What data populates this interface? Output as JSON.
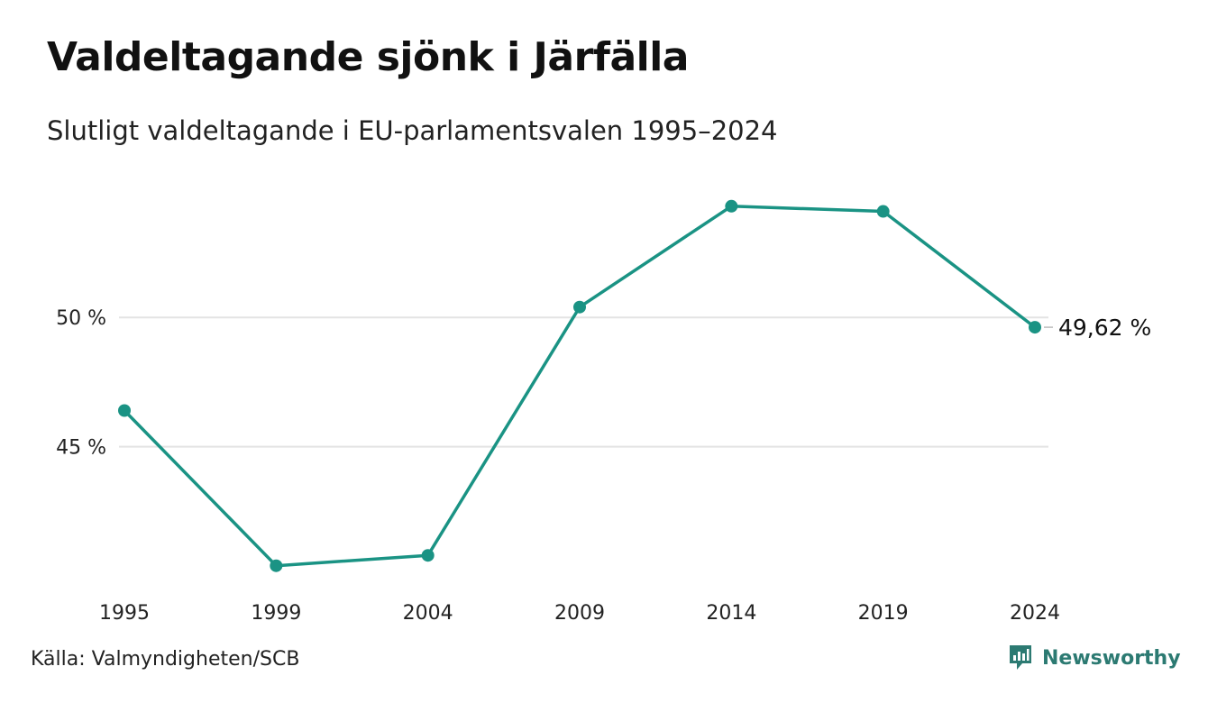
{
  "header": {
    "title": "Valdeltagande sjönk i Järfälla",
    "subtitle": "Slutligt valdeltagande i EU-parlamentsvalen 1995–2024"
  },
  "footer": {
    "source": "Källa: Valmyndigheten/SCB",
    "brand": "Newsworthy"
  },
  "colors": {
    "line": "#1a9384",
    "grid": "#e3e3e3",
    "brand": "#2c7a72"
  },
  "chart_data": {
    "type": "line",
    "x": [
      "1995",
      "1999",
      "2004",
      "2009",
      "2014",
      "2019",
      "2024"
    ],
    "series": [
      {
        "values": [
          46.4,
          40.4,
          40.8,
          50.4,
          54.3,
          54.1,
          49.62
        ]
      }
    ],
    "y_ticks": [
      45,
      50
    ],
    "y_tick_labels": [
      "45 %",
      "50 %"
    ],
    "ylim": [
      39.1,
      56.0
    ],
    "end_label": "49,62 %",
    "grid": true,
    "legend": "none"
  }
}
